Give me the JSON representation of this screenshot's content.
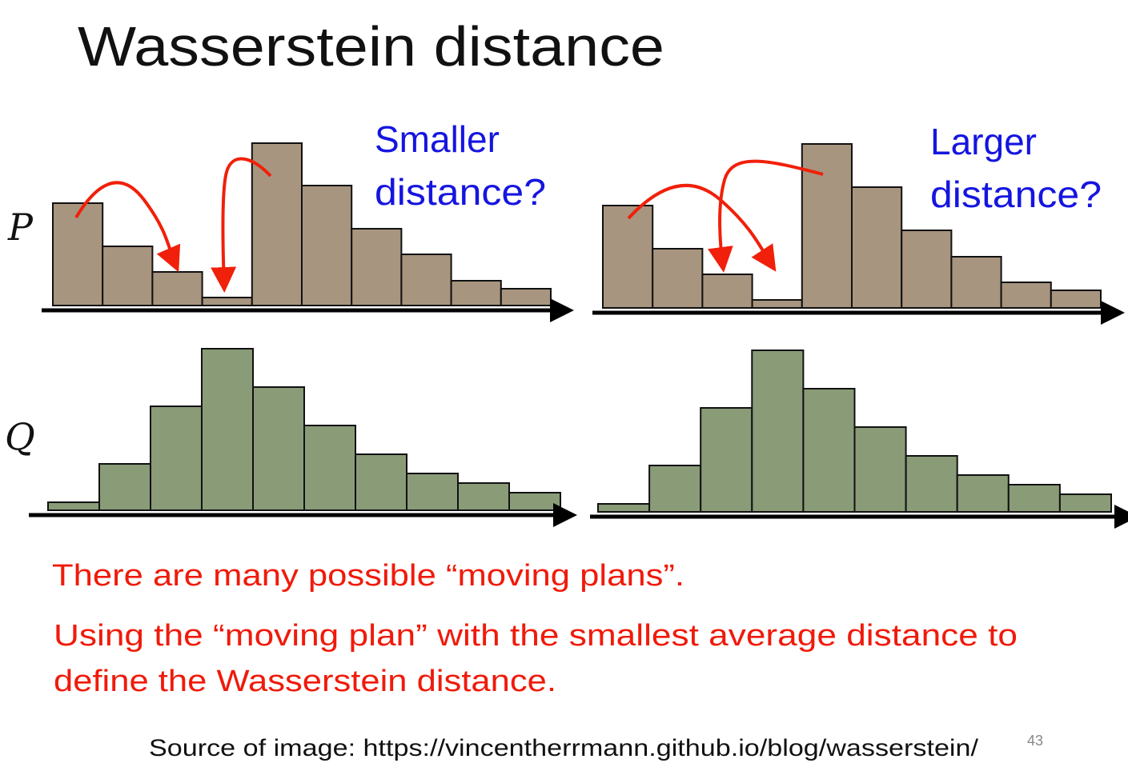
{
  "slide": {
    "title": "Wasserstein distance",
    "label_p": "P",
    "label_q": "Q",
    "left_caption_line1": "Smaller",
    "left_caption_line2": "distance?",
    "right_caption_line1": "Larger",
    "right_caption_line2": "distance?",
    "text_line1": "There are many possible “moving plans”.",
    "text_line2": "Using the “moving plan” with the smallest average distance to",
    "text_line3": "define the Wasserstein distance.",
    "source": "Source of image: https://vincentherrmann.github.io/blog/wasserstein/",
    "page_number": "43",
    "colors": {
      "p_bar": "#a8957f",
      "q_bar": "#8a9b78",
      "arrow": "#f0200a",
      "caption": "#1515e0",
      "text": "#f01a0a"
    }
  },
  "chart_data": [
    {
      "type": "bar",
      "name": "left-P",
      "categories": [
        1,
        2,
        3,
        4,
        5,
        6,
        7,
        8,
        9,
        10
      ],
      "values": [
        128,
        74,
        42,
        10,
        203,
        150,
        96,
        64,
        31,
        21
      ],
      "moves": [
        {
          "from": 1,
          "to": 3
        },
        {
          "from": 5,
          "to": 4
        }
      ]
    },
    {
      "type": "bar",
      "name": "left-Q",
      "categories": [
        1,
        2,
        3,
        4,
        5,
        6,
        7,
        8,
        9,
        10
      ],
      "values": [
        10,
        58,
        130,
        202,
        154,
        106,
        70,
        46,
        34,
        22
      ]
    },
    {
      "type": "bar",
      "name": "right-P",
      "categories": [
        1,
        2,
        3,
        4,
        5,
        6,
        7,
        8,
        9,
        10
      ],
      "values": [
        128,
        74,
        42,
        10,
        205,
        151,
        97,
        64,
        32,
        22
      ],
      "moves": [
        {
          "from": 1,
          "to": 4
        },
        {
          "from": 5,
          "to": 3
        }
      ]
    },
    {
      "type": "bar",
      "name": "right-Q",
      "categories": [
        1,
        2,
        3,
        4,
        5,
        6,
        7,
        8,
        9,
        10
      ],
      "values": [
        10,
        58,
        130,
        202,
        154,
        106,
        70,
        46,
        34,
        22
      ]
    }
  ]
}
